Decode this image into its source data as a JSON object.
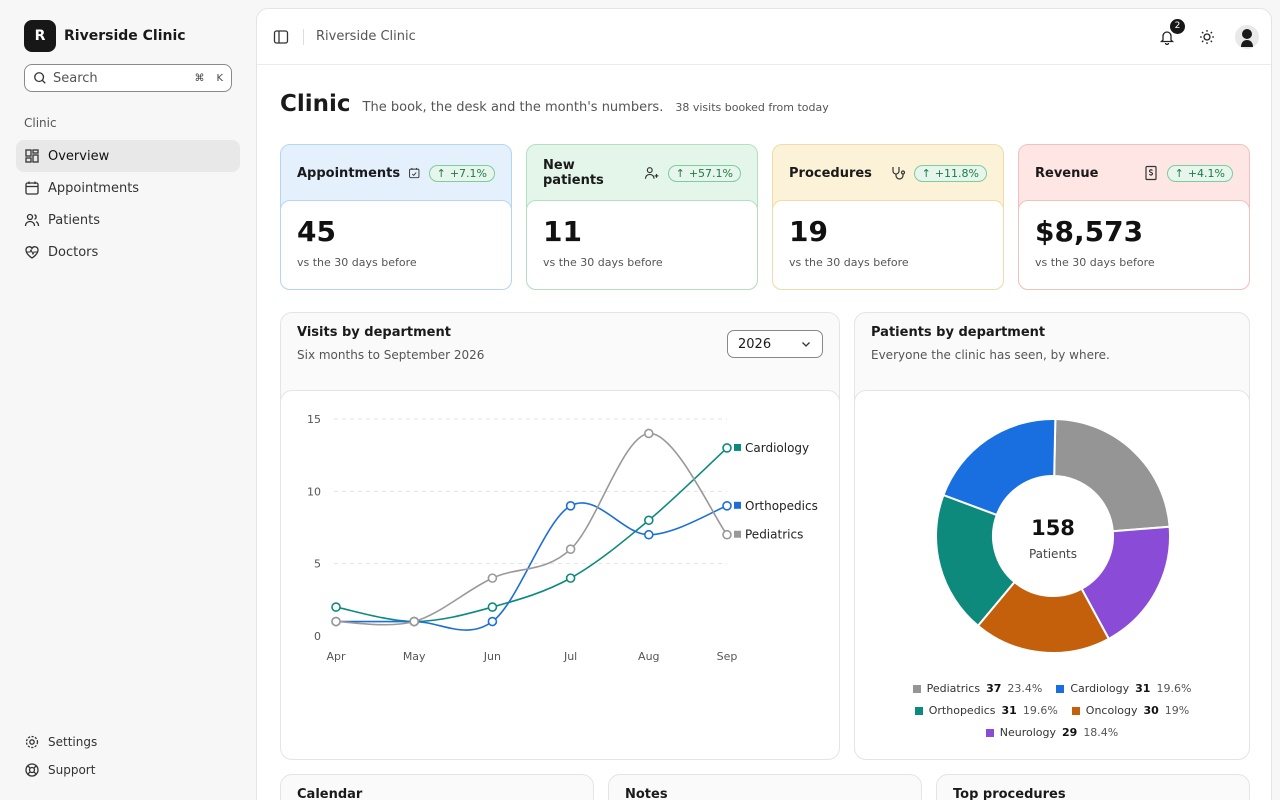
{
  "brand": {
    "initial": "R",
    "name": "Riverside Clinic"
  },
  "search": {
    "label": "Search",
    "shortcut_cmd": "⌘",
    "shortcut_key": "K"
  },
  "sidebar": {
    "section": "Clinic",
    "items": [
      {
        "label": "Overview",
        "icon": "grid-icon"
      },
      {
        "label": "Appointments",
        "icon": "calendar-icon"
      },
      {
        "label": "Patients",
        "icon": "users-icon"
      },
      {
        "label": "Doctors",
        "icon": "heart-pulse-icon"
      }
    ],
    "bottom": [
      {
        "label": "Settings",
        "icon": "gear-icon"
      },
      {
        "label": "Support",
        "icon": "lifebuoy-icon"
      }
    ]
  },
  "topbar": {
    "breadcrumb": "Riverside Clinic",
    "notifications": "2"
  },
  "heading": {
    "title": "Clinic",
    "subtitle": "The book, the desk and the month's numbers.",
    "note": "38 visits booked from today"
  },
  "kpis": [
    {
      "label": "Appointments",
      "change": "+7.1%",
      "value": "45",
      "foot": "vs the 30 days before",
      "color": "#e4f0fc",
      "border": "#b7d5f3"
    },
    {
      "label": "New patients",
      "change": "+57.1%",
      "value": "11",
      "foot": "vs the 30 days before",
      "color": "#e3f6e9",
      "border": "#b4e0c2"
    },
    {
      "label": "Procedures",
      "change": "+11.8%",
      "value": "19",
      "foot": "vs the 30 days before",
      "color": "#fcf2d8",
      "border": "#eedcad"
    },
    {
      "label": "Revenue",
      "change": "+4.1%",
      "value": "$8,573",
      "foot": "vs the 30 days before",
      "color": "#fde6e4",
      "border": "#f1c2bd"
    }
  ],
  "visits_card": {
    "title": "Visits by department",
    "subtitle": "Six months to September 2026",
    "year": "2026"
  },
  "patients_card": {
    "title": "Patients by department",
    "subtitle": "Everyone the clinic has seen, by where.",
    "center_value": "158",
    "center_label": "Patients"
  },
  "bottom_cards": [
    "Calendar",
    "Notes",
    "Top procedures"
  ],
  "chart_data": [
    {
      "type": "line",
      "categories": [
        "Apr",
        "May",
        "Jun",
        "Jul",
        "Aug",
        "Sep"
      ],
      "ylim": [
        0,
        15
      ],
      "yticks": [
        0,
        5,
        10,
        15
      ],
      "grid": true,
      "series": [
        {
          "name": "Cardiology",
          "values": [
            2,
            1,
            2,
            4,
            8,
            13
          ],
          "color": "#0e8a7d"
        },
        {
          "name": "Orthopedics",
          "values": [
            1,
            1,
            1,
            9,
            7,
            9
          ],
          "color": "#1d6fd8"
        },
        {
          "name": "Pediatrics",
          "values": [
            1,
            1,
            4,
            6,
            14,
            7
          ],
          "color": "#999999"
        }
      ]
    },
    {
      "type": "pie",
      "slices": [
        {
          "name": "Pediatrics",
          "value": 37,
          "pct": "23.4%",
          "color": "#959595"
        },
        {
          "name": "Neurology",
          "value": 29,
          "pct": "18.4%",
          "color": "#8a4bd6"
        },
        {
          "name": "Oncology",
          "value": 30,
          "pct": "19%",
          "color": "#c45f0b"
        },
        {
          "name": "Orthopedics",
          "value": 31,
          "pct": "19.6%",
          "color": "#0e8a7d"
        },
        {
          "name": "Cardiology",
          "value": 31,
          "pct": "19.6%",
          "color": "#1a6fe0"
        }
      ]
    }
  ]
}
